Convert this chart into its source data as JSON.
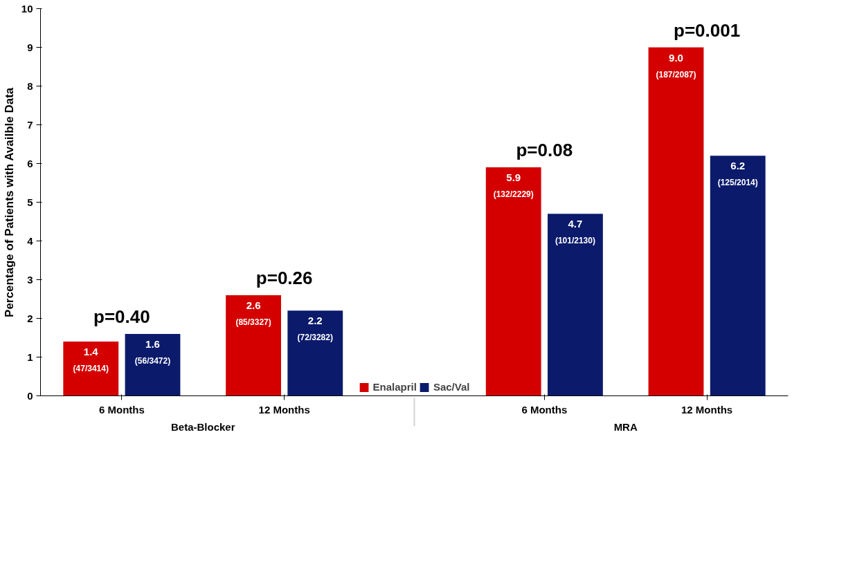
{
  "chart_data": {
    "type": "bar",
    "ylabel": "Percentage of Patients with Availble Data",
    "categories": [
      "6 Months",
      "12 Months",
      "6 Months",
      "12 Months"
    ],
    "series": [
      {
        "name": "Enalapril",
        "color": "#d40000",
        "values": [
          1.4,
          2.6,
          5.9,
          9.0
        ],
        "value_labels": [
          "1.4\n(47/3414)",
          "2.6\n(85/3327)",
          "5.9\n(132/2229)",
          "9.0\n(187/2087)"
        ]
      },
      {
        "name": "Sac/Val",
        "color": "#0b1a6b",
        "values": [
          1.6,
          2.2,
          4.7,
          6.2
        ],
        "value_labels": [
          "1.6\n(56/3472)",
          "2.2\n(72/3282)",
          "4.7\n(101/2130)",
          "6.2\n(125/2014)"
        ]
      }
    ],
    "annotations": [
      "p=0.40",
      "p=0.26",
      "p=0.08",
      "p=0.001",
      "Beta-Blocker",
      "MRA"
    ],
    "ylim": [
      0,
      10
    ],
    "yticks": [
      0,
      1,
      2,
      3,
      4,
      5,
      6,
      7,
      8,
      9,
      10
    ],
    "grid": false,
    "legend": "bottom"
  }
}
